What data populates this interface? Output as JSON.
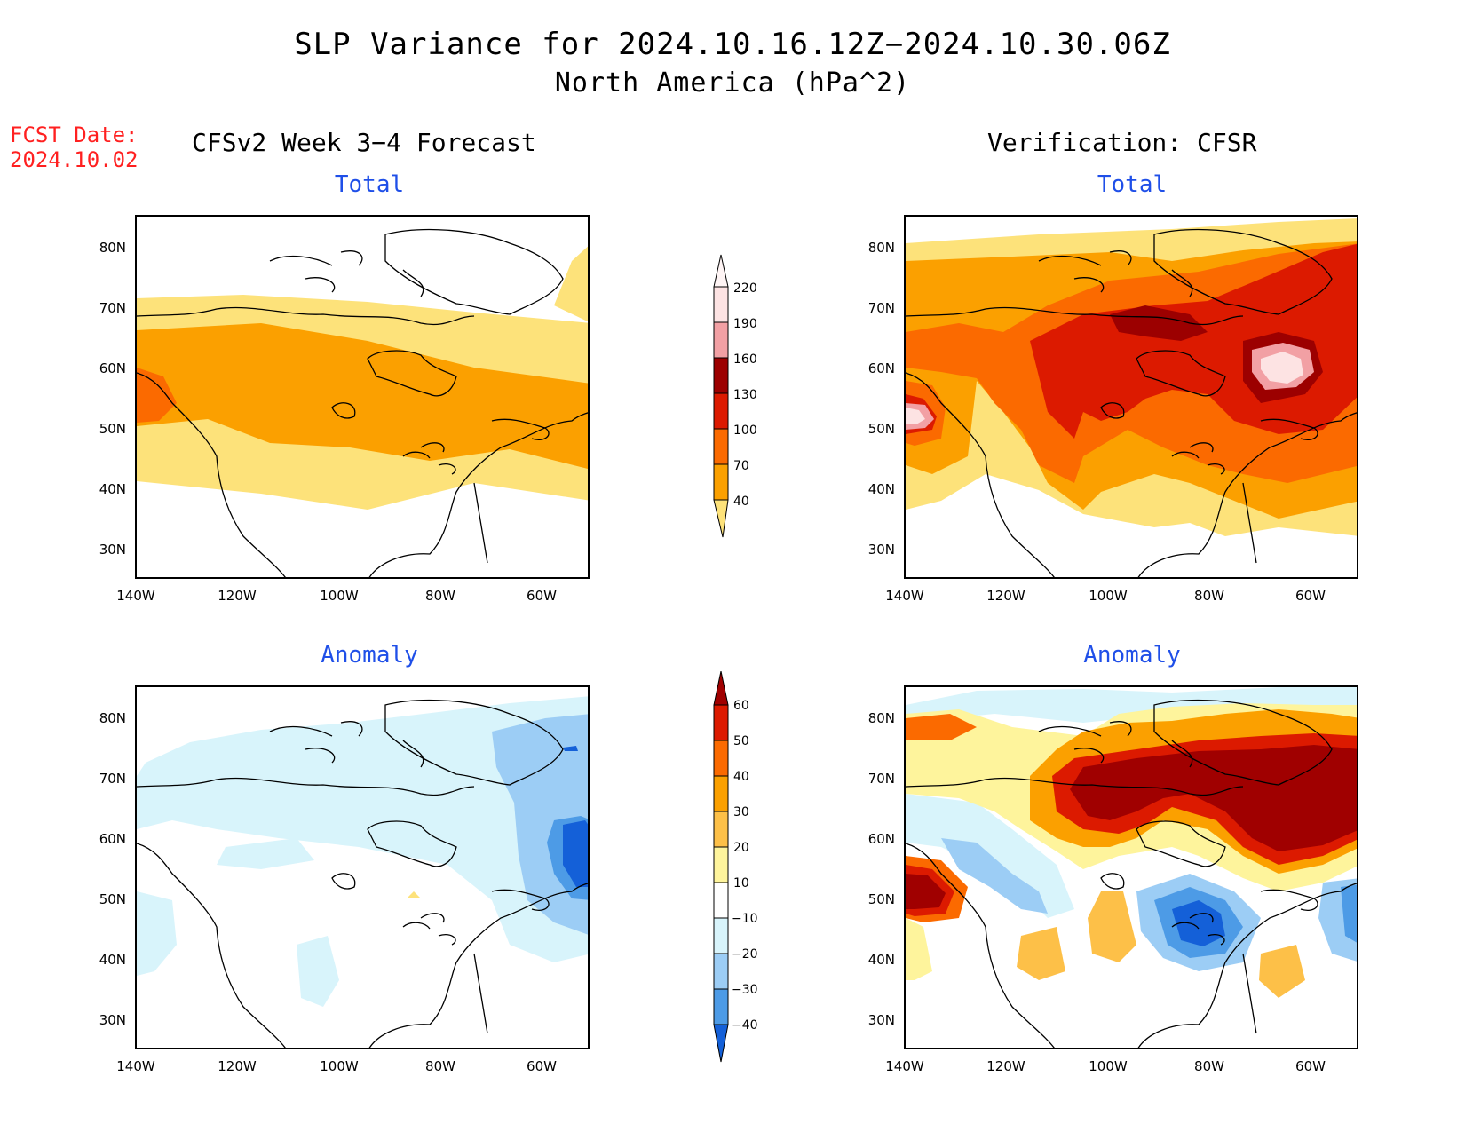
{
  "title": "SLP Variance for 2024.10.16.12Z−2024.10.30.06Z",
  "subtitle": "North America (hPa^2)",
  "fcst_label": "FCST Date:",
  "fcst_date": "2024.10.02",
  "left_header": "CFSv2 Week 3−4 Forecast",
  "right_header": "Verification: CFSR",
  "panel_titles": {
    "tl": "Total",
    "tr": "Total",
    "bl": "Anomaly",
    "br": "Anomaly"
  },
  "lat_labels": [
    "80N",
    "70N",
    "60N",
    "50N",
    "40N",
    "30N"
  ],
  "lon_labels": [
    "140W",
    "120W",
    "100W",
    "80W",
    "60W"
  ],
  "colorbars": {
    "total": {
      "labels": [
        "220",
        "190",
        "160",
        "130",
        "100",
        "70",
        "40"
      ],
      "colors": [
        "#fde3e3",
        "#f2a0a4",
        "#9c0000",
        "#dc1a00",
        "#fb6a00",
        "#fba000",
        "#fde27a"
      ]
    },
    "anomaly": {
      "labels": [
        "60",
        "50",
        "40",
        "30",
        "20",
        "10",
        "−10",
        "−20",
        "−30",
        "−40"
      ],
      "colors": [
        "#a00000",
        "#dc1a00",
        "#fb6a00",
        "#fba000",
        "#fdc048",
        "#fef49c",
        "#ffffff",
        "#d8f4fb",
        "#9ccdf5",
        "#4d9be6",
        "#1460d8"
      ]
    }
  },
  "colors": {
    "title_blue": "#1f4fe8",
    "fcst_red": "#ff2020"
  }
}
